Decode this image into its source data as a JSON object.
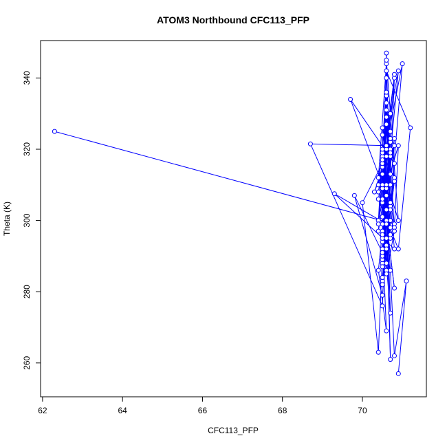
{
  "chart_data": {
    "type": "line",
    "title": "ATOM3 Northbound CFC113_PFP",
    "xlabel": "CFC113_PFP",
    "ylabel": "Theta (K)",
    "xlim": [
      61.95,
      71.6
    ],
    "ylim": [
      250.5,
      350.5
    ],
    "x_ticks": [
      62,
      64,
      66,
      68,
      70
    ],
    "y_ticks": [
      260,
      280,
      300,
      320,
      340
    ],
    "grid": false,
    "legend": "none",
    "series_color": "#0000ff",
    "marker": "open-circle",
    "series": [
      {
        "points": [
          [
            62.3,
            325.0
          ],
          [
            70.8,
            299.0
          ],
          [
            70.5,
            294.0
          ],
          [
            70.6,
            344.0
          ],
          [
            70.4,
            312.0
          ],
          [
            70.9,
            342.0
          ],
          [
            70.5,
            296.0
          ],
          [
            70.7,
            330.0
          ],
          [
            70.5,
            305.0
          ],
          [
            70.6,
            340.0
          ],
          [
            70.4,
            300.0
          ],
          [
            70.8,
            321.0
          ],
          [
            70.5,
            288.0
          ],
          [
            70.6,
            335.0
          ],
          [
            70.7,
            303.0
          ],
          [
            70.5,
            318.0
          ],
          [
            70.6,
            286.0
          ],
          [
            70.8,
            340.0
          ],
          [
            70.4,
            308.0
          ],
          [
            70.7,
            325.0
          ],
          [
            70.5,
            292.0
          ],
          [
            70.6,
            345.0
          ],
          [
            70.9,
            300.0
          ],
          [
            70.5,
            315.0
          ],
          [
            70.3,
            308.0
          ],
          [
            70.7,
            320.0
          ],
          [
            70.5,
            287.0
          ],
          [
            70.6,
            333.0
          ],
          [
            70.8,
            298.0
          ],
          [
            70.9,
            321.0
          ],
          [
            70.5,
            306.0
          ],
          [
            70.6,
            329.0
          ],
          [
            70.4,
            297.0
          ],
          [
            70.7,
            318.0
          ],
          [
            70.5,
            283.0
          ],
          [
            70.8,
            312.0
          ],
          [
            70.6,
            336.0
          ],
          [
            70.5,
            301.0
          ],
          [
            70.7,
            322.0
          ],
          [
            70.5,
            290.0
          ],
          [
            70.6,
            309.0
          ],
          [
            70.8,
            341.0
          ],
          [
            70.4,
            299.0
          ],
          [
            70.6,
            327.0
          ],
          [
            70.5,
            295.0
          ],
          [
            70.7,
            313.0
          ],
          [
            70.6,
            342.0
          ],
          [
            71.2,
            326.0
          ],
          [
            70.9,
            292.0
          ],
          [
            70.4,
            306.0
          ],
          [
            70.6,
            320.0
          ],
          [
            70.5,
            297.0
          ],
          [
            70.7,
            300.0
          ],
          [
            70.6,
            331.0
          ],
          [
            70.4,
            310.0
          ],
          [
            71.0,
            344.0
          ],
          [
            70.7,
            304.0
          ],
          [
            70.5,
            319.0
          ],
          [
            70.6,
            293.0
          ],
          [
            70.8,
            311.0
          ],
          [
            70.5,
            284.0
          ],
          [
            70.7,
            300.0
          ],
          [
            70.6,
            347.0
          ],
          [
            70.5,
            301.0
          ],
          [
            70.6,
            288.0
          ],
          [
            70.8,
            316.0
          ],
          [
            69.7,
            334.0
          ],
          [
            70.6,
            307.0
          ],
          [
            70.5,
            289.0
          ],
          [
            70.7,
            323.0
          ],
          [
            70.5,
            299.0
          ],
          [
            70.6,
            318.0
          ],
          [
            70.4,
            263.0
          ],
          [
            70.0,
            305.0
          ],
          [
            70.5,
            316.0
          ],
          [
            70.6,
            292.0
          ],
          [
            70.7,
            310.0
          ],
          [
            70.5,
            326.0
          ],
          [
            70.8,
            297.0
          ],
          [
            70.6,
            285.0
          ],
          [
            70.5,
            313.0
          ],
          [
            70.7,
            295.0
          ],
          [
            70.6,
            303.0
          ],
          [
            70.5,
            276.0
          ],
          [
            68.7,
            321.5
          ],
          [
            70.6,
            321.0
          ],
          [
            70.5,
            309.0
          ],
          [
            70.8,
            281.0
          ],
          [
            70.6,
            300.0
          ],
          [
            70.7,
            261.0
          ],
          [
            70.6,
            307.0
          ],
          [
            70.5,
            324.0
          ],
          [
            70.7,
            298.0
          ],
          [
            70.6,
            310.0
          ],
          [
            70.5,
            290.0
          ],
          [
            70.6,
            327.0
          ],
          [
            70.7,
            303.0
          ],
          [
            70.5,
            279.0
          ],
          [
            69.8,
            307.0
          ],
          [
            70.5,
            291.0
          ],
          [
            70.7,
            286.0
          ],
          [
            70.5,
            296.0
          ],
          [
            70.6,
            269.0
          ],
          [
            70.4,
            286.0
          ],
          [
            70.7,
            319.0
          ],
          [
            70.5,
            282.0
          ],
          [
            70.6,
            295.0
          ],
          [
            70.8,
            323.0
          ],
          [
            70.5,
            301.0
          ],
          [
            70.7,
            274.0
          ],
          [
            70.6,
            310.0
          ],
          [
            70.5,
            317.0
          ],
          [
            70.7,
            305.0
          ],
          [
            70.8,
            292.0
          ],
          [
            69.3,
            307.5
          ],
          [
            70.6,
            299.0
          ],
          [
            70.5,
            310.0
          ],
          [
            70.7,
            296.0
          ],
          [
            70.5,
            320.0
          ],
          [
            70.7,
            286.0
          ],
          [
            70.8,
            262.0
          ],
          [
            71.1,
            283.0
          ],
          [
            70.9,
            257.0
          ]
        ]
      }
    ]
  }
}
